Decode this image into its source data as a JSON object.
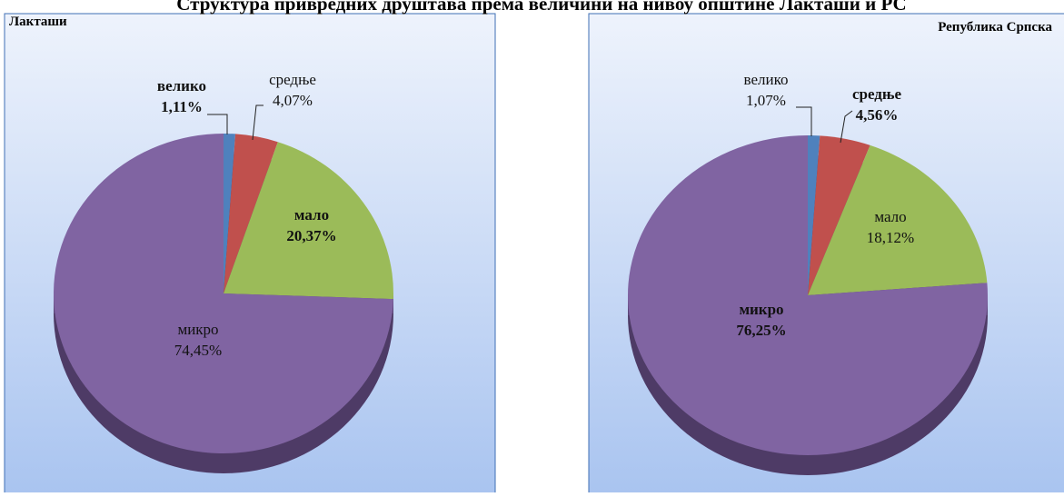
{
  "title": "Структура привредних друштава према величини на нивоу општине Лакташи и РС",
  "chart_data": [
    {
      "type": "pie",
      "title": "Лакташи",
      "categories": [
        "велико",
        "средње",
        "мало",
        "микро"
      ],
      "values": [
        1.11,
        4.07,
        20.37,
        74.45
      ],
      "value_labels": [
        "1,11%",
        "4,07%",
        "20,37%",
        "74,45%"
      ],
      "colors": [
        "#4f81bd",
        "#c0504d",
        "#9bbb59",
        "#8064a2"
      ]
    },
    {
      "type": "pie",
      "title": "Република Српска",
      "categories": [
        "велико",
        "средње",
        "мало",
        "микро"
      ],
      "values": [
        1.07,
        4.56,
        18.12,
        76.25
      ],
      "value_labels": [
        "1,07%",
        "4,56%",
        "18,12%",
        "76,25%"
      ],
      "colors": [
        "#4f81bd",
        "#c0504d",
        "#9bbb59",
        "#8064a2"
      ]
    }
  ]
}
